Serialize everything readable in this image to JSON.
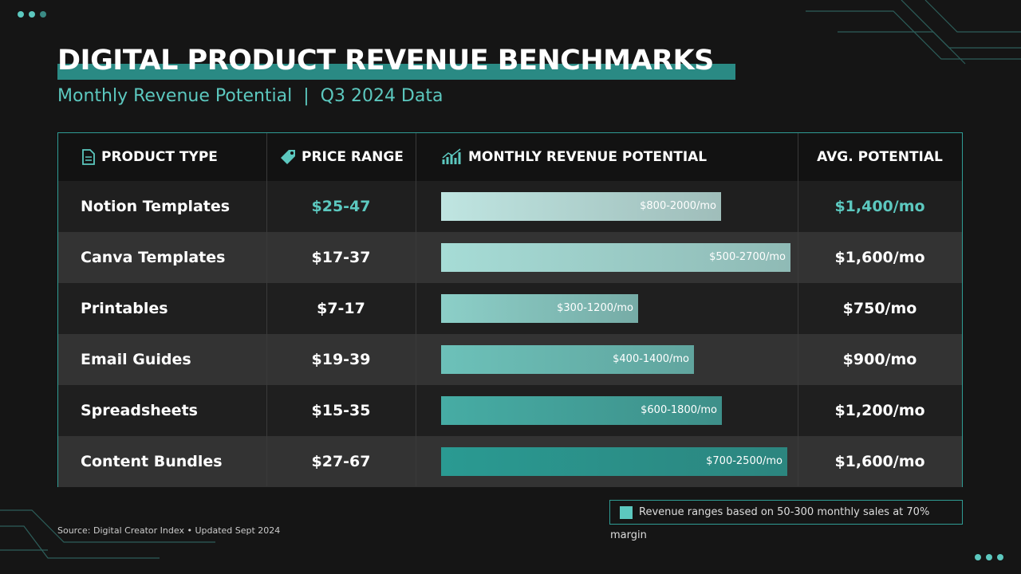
{
  "header": {
    "title": "DIGITAL PRODUCT REVENUE BENCHMARKS",
    "subtitle": "Monthly Revenue Potential  |  Q3 2024 Data"
  },
  "table": {
    "columns": [
      "PRODUCT TYPE",
      "PRICE RANGE",
      "MONTHLY REVENUE POTENTIAL",
      "AVG. POTENTIAL"
    ],
    "rows": [
      [
        "Notion Templates",
        "$25-47",
        "$800-2000/mo",
        "$1,400/mo"
      ],
      [
        "Canva Templates",
        "$17-37",
        "$500-2700/mo",
        "$1,600/mo"
      ],
      [
        "Printables",
        "$7-17",
        "$300-1200/mo",
        "$750/mo"
      ],
      [
        "Email Guides",
        "$19-39",
        "$400-1400/mo",
        "$900/mo"
      ],
      [
        "Spreadsheets",
        "$15-35",
        "$600-1800/mo",
        "$1,200/mo"
      ],
      [
        "Content Bundles",
        "$27-67",
        "$700-2500/mo",
        "$1,600/mo"
      ]
    ]
  },
  "legend": "Revenue ranges based on 50-300 monthly sales at 70% margin",
  "footer": {
    "source": "Source: Digital Creator Index • Updated Sept 2024"
  }
}
